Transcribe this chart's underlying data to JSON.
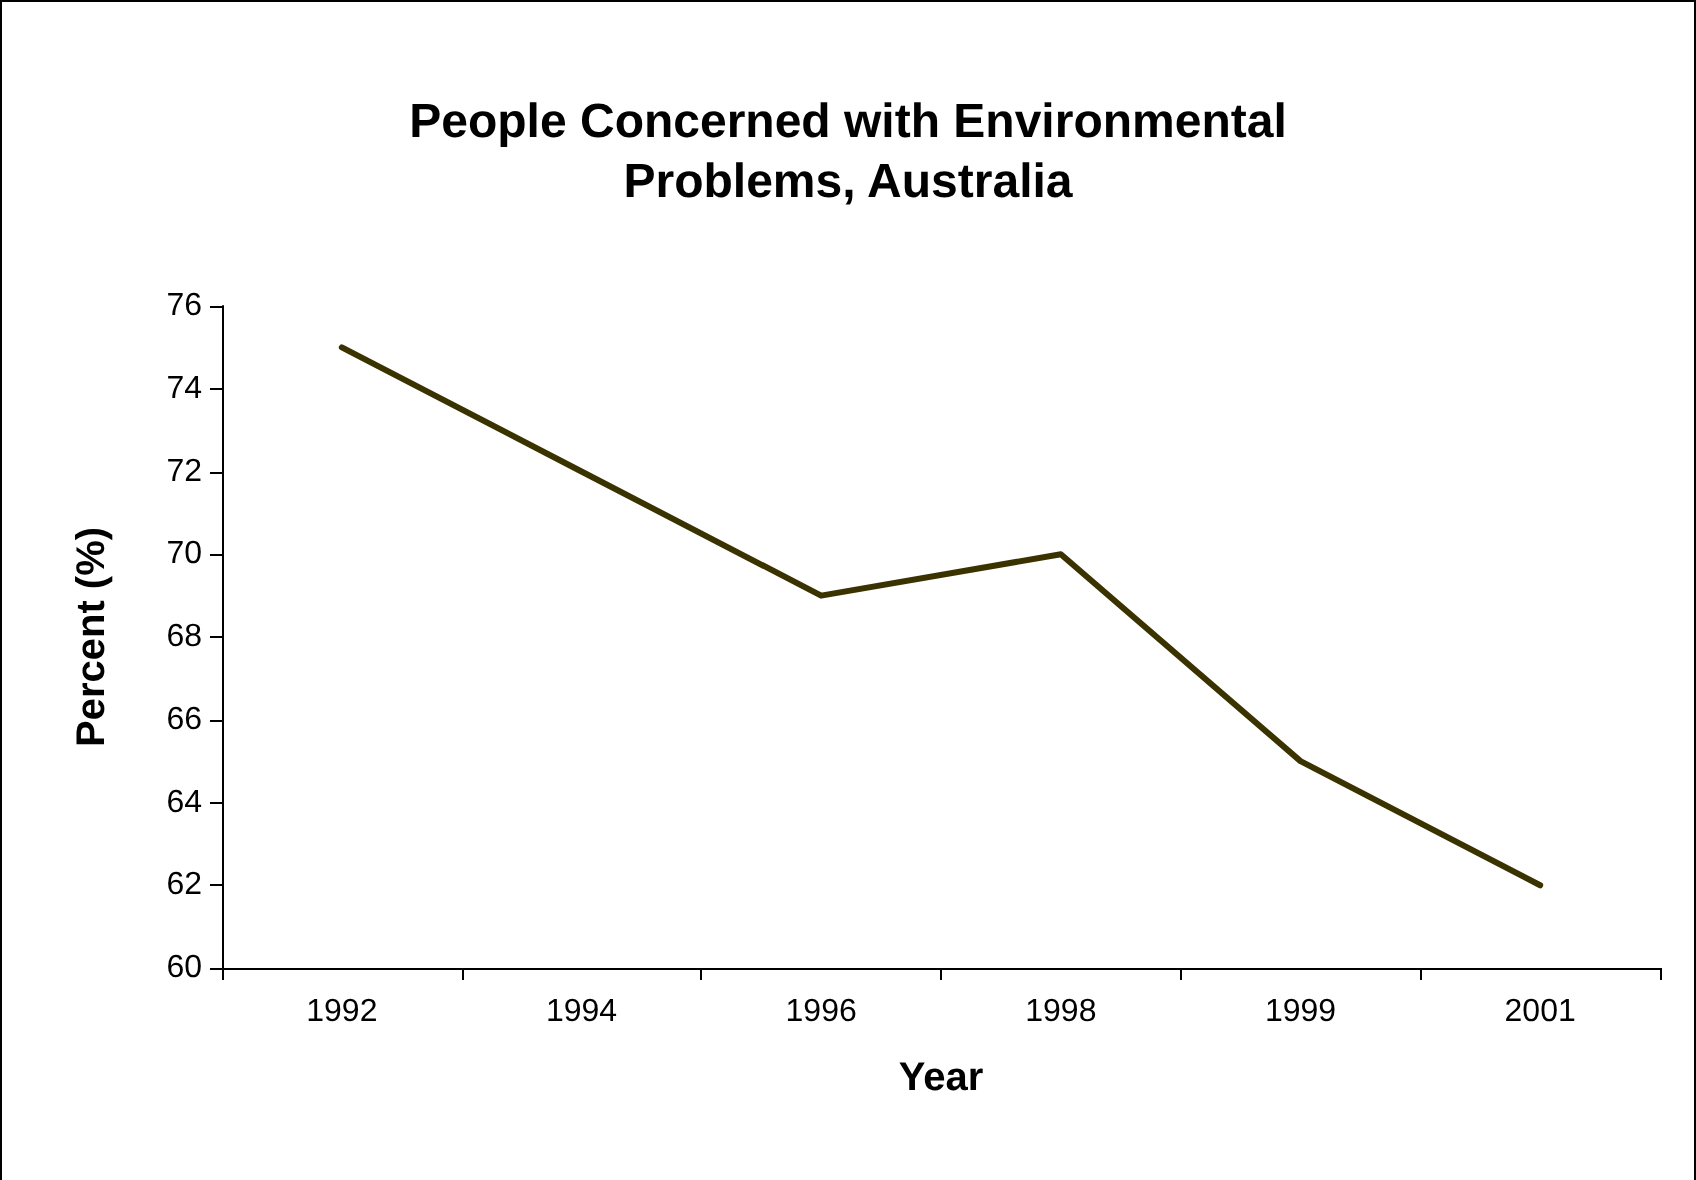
{
  "chart_data": {
    "type": "line",
    "title": "People Concerned with Environmental\nProblems, Australia",
    "xlabel": "Year",
    "ylabel": "Percent (%)",
    "categories": [
      "1992",
      "1994",
      "1996",
      "1998",
      "1999",
      "2001"
    ],
    "series": [
      {
        "color": "#3a3300",
        "values": [
          75,
          72,
          69,
          70,
          65,
          62
        ]
      }
    ],
    "ylim": [
      60,
      76
    ],
    "yticks": [
      60,
      62,
      64,
      66,
      68,
      70,
      72,
      74,
      76
    ],
    "grid": false,
    "marker": "none",
    "line_style": "solid"
  }
}
